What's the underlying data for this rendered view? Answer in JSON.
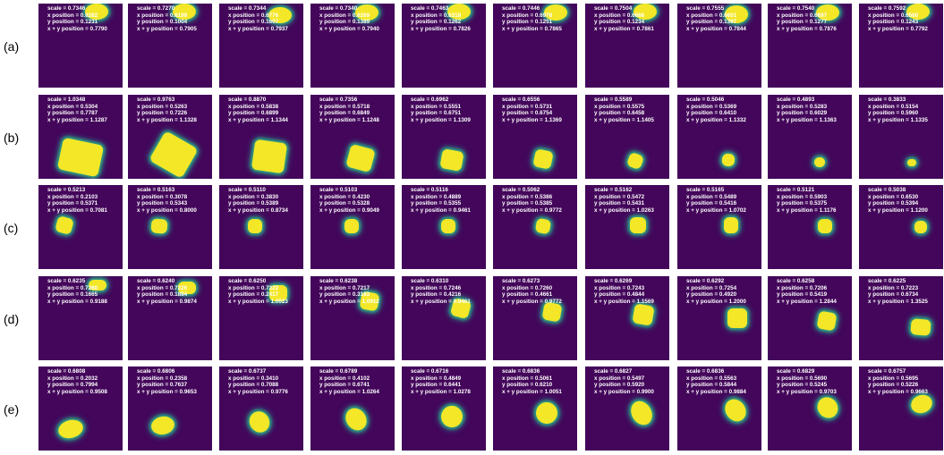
{
  "colors": {
    "background": "#43065a",
    "blob": "#f3e728",
    "edge": "#2fa782",
    "text": "#ffffff"
  },
  "label_prefixes": {
    "scale": "scale = ",
    "x": "x position = ",
    "y": "y position = ",
    "xy": "x + y position = "
  },
  "rows": [
    {
      "label": "(a)",
      "panels": [
        {
          "scale": "0.7346",
          "x": "0.6282",
          "y": "0.1231",
          "xy": "0.7790"
        },
        {
          "scale": "0.7270",
          "x": "0.6199",
          "y": "0.1004",
          "xy": "0.7905"
        },
        {
          "scale": "0.7344",
          "x": "0.6776",
          "y": "0.1607",
          "xy": "0.7937"
        },
        {
          "scale": "0.7340",
          "x": "0.6269",
          "y": "0.1389",
          "xy": "0.7940"
        },
        {
          "scale": "0.7463",
          "x": "0.6318",
          "y": "0.1262",
          "xy": "0.7826"
        },
        {
          "scale": "0.7446",
          "x": "0.6978",
          "y": "0.1251",
          "xy": "0.7865"
        },
        {
          "scale": "0.7504",
          "x": "0.6666",
          "y": "0.1234",
          "xy": "0.7861"
        },
        {
          "scale": "0.7555",
          "x": "0.6601",
          "y": "0.1397",
          "xy": "0.7844"
        },
        {
          "scale": "0.7540",
          "x": "0.6697",
          "y": "0.1277",
          "xy": "0.7876"
        },
        {
          "scale": "0.7592",
          "x": "0.6560",
          "y": "0.1243",
          "xy": "0.7792"
        }
      ]
    },
    {
      "label": "(b)",
      "panels": [
        {
          "scale": "1.0348",
          "x": "0.5304",
          "y": "0.7787",
          "xy": "1.1287"
        },
        {
          "scale": "0.9763",
          "x": "0.5263",
          "y": "0.7226",
          "xy": "1.1328"
        },
        {
          "scale": "0.8870",
          "x": "0.5838",
          "y": "0.6899",
          "xy": "1.1344"
        },
        {
          "scale": "0.7356",
          "x": "0.5718",
          "y": "0.6849",
          "xy": "1.1248"
        },
        {
          "scale": "0.6962",
          "x": "0.5551",
          "y": "0.6751",
          "xy": "1.1309"
        },
        {
          "scale": "0.6556",
          "x": "0.5731",
          "y": "0.6754",
          "xy": "1.1369"
        },
        {
          "scale": "0.5589",
          "x": "0.5575",
          "y": "0.6458",
          "xy": "1.1405"
        },
        {
          "scale": "0.5046",
          "x": "0.5369",
          "y": "0.6410",
          "xy": "1.1332"
        },
        {
          "scale": "0.4893",
          "x": "0.5283",
          "y": "0.6029",
          "xy": "1.1363"
        },
        {
          "scale": "0.3833",
          "x": "0.5154",
          "y": "0.5960",
          "xy": "1.1335"
        }
      ]
    },
    {
      "label": "(c)",
      "panels": [
        {
          "scale": "0.5213",
          "x": "0.2103",
          "y": "0.5371",
          "xy": "0.7081"
        },
        {
          "scale": "0.5163",
          "x": "0.3078",
          "y": "0.5343",
          "xy": "0.8000"
        },
        {
          "scale": "0.5110",
          "x": "0.3830",
          "y": "0.5389",
          "xy": "0.8734"
        },
        {
          "scale": "0.5103",
          "x": "0.4230",
          "y": "0.5328",
          "xy": "0.9049"
        },
        {
          "scale": "0.5116",
          "x": "0.4889",
          "y": "0.5355",
          "xy": "0.9461"
        },
        {
          "scale": "0.5062",
          "x": "0.5386",
          "y": "0.5385",
          "xy": "0.9772"
        },
        {
          "scale": "0.5162",
          "x": "0.5472",
          "y": "0.5431",
          "xy": "1.0263"
        },
        {
          "scale": "0.5165",
          "x": "0.5489",
          "y": "0.5416",
          "xy": "1.0702"
        },
        {
          "scale": "0.5121",
          "x": "0.5903",
          "y": "0.5375",
          "xy": "1.1176"
        },
        {
          "scale": "0.5038",
          "x": "0.6530",
          "y": "0.5394",
          "xy": "1.1200"
        }
      ]
    },
    {
      "label": "(d)",
      "panels": [
        {
          "scale": "0.6235",
          "x": "0.7260",
          "y": "0.1665",
          "xy": "0.9188"
        },
        {
          "scale": "0.6240",
          "x": "0.7226",
          "y": "0.1884",
          "xy": "0.9874"
        },
        {
          "scale": "0.6250",
          "x": "0.7222",
          "y": "0.2417",
          "xy": "1.0023"
        },
        {
          "scale": "0.6238",
          "x": "0.7217",
          "y": "0.3183",
          "xy": "1.0912"
        },
        {
          "scale": "0.6310",
          "x": "0.7246",
          "y": "0.4216",
          "xy": "0.9461"
        },
        {
          "scale": "0.6273",
          "x": "0.7260",
          "y": "0.4661",
          "xy": "0.9772"
        },
        {
          "scale": "0.6269",
          "x": "0.7243",
          "y": "0.4844",
          "xy": "1.1569"
        },
        {
          "scale": "0.6292",
          "x": "0.7254",
          "y": "0.4920",
          "xy": "1.2000"
        },
        {
          "scale": "0.6258",
          "x": "0.7206",
          "y": "0.5419",
          "xy": "1.2844"
        },
        {
          "scale": "0.6225",
          "x": "0.7223",
          "y": "0.6734",
          "xy": "1.3525"
        }
      ]
    },
    {
      "label": "(e)",
      "panels": [
        {
          "scale": "0.6808",
          "x": "0.2032",
          "y": "0.7994",
          "xy": "0.9508"
        },
        {
          "scale": "0.6806",
          "x": "0.2358",
          "y": "0.7637",
          "xy": "0.9653"
        },
        {
          "scale": "0.6737",
          "x": "0.3410",
          "y": "0.7088",
          "xy": "0.9776"
        },
        {
          "scale": "0.6789",
          "x": "0.4102",
          "y": "0.6741",
          "xy": "1.0264"
        },
        {
          "scale": "0.6716",
          "x": "0.4849",
          "y": "0.6441",
          "xy": "1.0278"
        },
        {
          "scale": "0.6836",
          "x": "0.5061",
          "y": "0.6210",
          "xy": "1.0051"
        },
        {
          "scale": "0.6827",
          "x": "0.5497",
          "y": "0.5920",
          "xy": "0.9900"
        },
        {
          "scale": "0.6836",
          "x": "0.5563",
          "y": "0.5844",
          "xy": "0.9884"
        },
        {
          "scale": "0.6829",
          "x": "0.5690",
          "y": "0.5245",
          "xy": "0.9703"
        },
        {
          "scale": "0.6757",
          "x": "0.5695",
          "y": "0.5226",
          "xy": "0.9663"
        }
      ]
    }
  ]
}
